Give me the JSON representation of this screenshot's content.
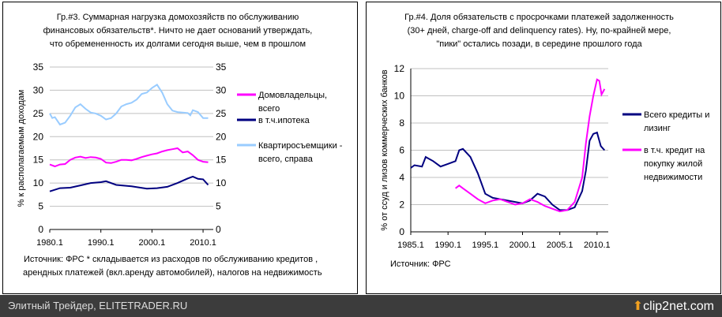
{
  "footer": {
    "left": "Элитный Трейдер, ELITETRADER.RU",
    "logo": "clip2net.com"
  },
  "chart_data": [
    {
      "type": "line",
      "title": "Гр.#3. Суммарная нагрузка домохозяйств по обслуживанию финансовых обязательств*. Ничто не дает оснований утверждать, что обремененность их долгами сегодня выше, чем в прошлом",
      "ylabel": "% к располагаемым доходам",
      "ylim": [
        0,
        35
      ],
      "yticks": [
        "0",
        "5",
        "10",
        "15",
        "20",
        "25",
        "30",
        "35"
      ],
      "xlim": [
        1980,
        2012
      ],
      "xticks": [
        {
          "v": 1980,
          "label": "1980.1"
        },
        {
          "v": 1990,
          "label": "1990.1"
        },
        {
          "v": 2000,
          "label": "2000.1"
        },
        {
          "v": 2010,
          "label": "2010.1"
        }
      ],
      "note": [
        "Источник: ФРС * складывается из расходов по обслуживанию кредитов ,",
        "арендных платежей (вкл.аренду автомобилей),  налогов на недвижимость"
      ],
      "series": [
        {
          "name": "Домовладельцы, всего",
          "legend": [
            "Домовладельцы,",
            "всего"
          ],
          "color": "#ff00ff",
          "x": [
            1980,
            1981,
            1982,
            1983,
            1984,
            1985,
            1986,
            1987,
            1988,
            1989,
            1990,
            1991,
            1992,
            1993,
            1994,
            1995,
            1996,
            1997,
            1998,
            1999,
            2000,
            2001,
            2002,
            2003,
            2004,
            2005,
            2006,
            2007,
            2008,
            2009,
            2010,
            2011
          ],
          "y": [
            14,
            13.6,
            14,
            14.1,
            15,
            15.5,
            15.7,
            15.4,
            15.6,
            15.5,
            15.2,
            14.4,
            14.3,
            14.6,
            15,
            15,
            14.9,
            15.2,
            15.6,
            15.9,
            16.2,
            16.4,
            16.8,
            17.1,
            17.3,
            17.5,
            16.6,
            16.8,
            16,
            15,
            14.6,
            14.5
          ]
        },
        {
          "name": "в т.ч.ипотека",
          "legend": [
            "в т.ч.ипотека"
          ],
          "color": "#000080",
          "x": [
            1980,
            1982,
            1984,
            1986,
            1988,
            1990,
            1991,
            1993,
            1996,
            1999,
            2001,
            2003,
            2005,
            2007,
            2008,
            2009,
            2010,
            2011
          ],
          "y": [
            8.2,
            8.9,
            9,
            9.5,
            10,
            10.2,
            10.4,
            9.6,
            9.3,
            8.8,
            8.9,
            9.2,
            10,
            11,
            11.4,
            10.9,
            10.8,
            9.6
          ]
        },
        {
          "name": "Квартиросъемщики - всего, справа",
          "legend": [
            "Квартиросъемщики -",
            "всего, справа"
          ],
          "color": "#99ccff",
          "x": [
            1980,
            1980.5,
            1981,
            1982,
            1983,
            1984,
            1985,
            1986,
            1987,
            1988,
            1989,
            1990,
            1991,
            1992,
            1993,
            1994,
            1995,
            1996,
            1997,
            1998,
            1999,
            2000,
            2001,
            2002,
            2003,
            2004,
            2005,
            2006,
            2007,
            2007.5,
            2008,
            2009,
            2010,
            2011
          ],
          "y": [
            25,
            24,
            24.2,
            22.6,
            23,
            24.5,
            26.3,
            27,
            26,
            25.2,
            25,
            24.5,
            23.7,
            24,
            25,
            26.5,
            27,
            27.3,
            28,
            29.2,
            29.5,
            30.5,
            31.2,
            29.5,
            27,
            25.6,
            25.3,
            25.2,
            25.1,
            24.6,
            25.7,
            25.3,
            24,
            24
          ]
        }
      ]
    },
    {
      "type": "line",
      "title": "Гр.#4. Доля обязательств с просрочками платежей задолженность (30+ дней, charge-off and delinquency rates). Ну, по-крайней мере, \"пики\" остались позади, в середине прошлого года",
      "ylabel": "% от ссуд и лизов коммерческих банков",
      "ylim": [
        0,
        12
      ],
      "yticks": [
        "0",
        "2",
        "4",
        "6",
        "8",
        "10",
        "12"
      ],
      "xlim": [
        1985,
        2011.5
      ],
      "xticks": [
        {
          "v": 1985,
          "label": "1985.1"
        },
        {
          "v": 1990,
          "label": "1990.1"
        },
        {
          "v": 1995,
          "label": "1995.1"
        },
        {
          "v": 2000,
          "label": "2000.1"
        },
        {
          "v": 2005,
          "label": "2005.1"
        },
        {
          "v": 2010,
          "label": "2010.1"
        }
      ],
      "note": [
        "Источник: ФРС"
      ],
      "series": [
        {
          "name": "Всего кредиты и лизинг",
          "legend": [
            "Всего кредиты и",
            "лизинг"
          ],
          "color": "#000080",
          "x": [
            1985,
            1985.5,
            1986.5,
            1987,
            1988,
            1989,
            1990,
            1991,
            1991.5,
            1992,
            1993,
            1994,
            1995,
            1996,
            1997,
            1998,
            1999,
            2000,
            2001,
            2002,
            2003,
            2004,
            2005,
            2006,
            2007,
            2008,
            2008.5,
            2009,
            2009.5,
            2010,
            2010.5,
            2011
          ],
          "y": [
            4.7,
            4.9,
            4.8,
            5.5,
            5.2,
            4.8,
            5,
            5.2,
            6,
            6.1,
            5.5,
            4.3,
            2.8,
            2.5,
            2.4,
            2.3,
            2.2,
            2.1,
            2.3,
            2.8,
            2.6,
            2,
            1.6,
            1.6,
            1.8,
            3,
            4.5,
            6.7,
            7.2,
            7.3,
            6.3,
            6
          ]
        },
        {
          "name": "в т.ч. кредит на покупку жилой недвижимости",
          "legend": [
            "в т.ч. кредит на",
            "покупку жилой",
            "недвижимости"
          ],
          "color": "#ff00ff",
          "x": [
            1991,
            1991.5,
            1992,
            1993,
            1994,
            1995,
            1996,
            1997,
            1998,
            1999,
            2000,
            2001,
            2002,
            2003,
            2004,
            2005,
            2006,
            2007,
            2008,
            2008.5,
            2009,
            2009.5,
            2010,
            2010.3,
            2010.6,
            2011
          ],
          "y": [
            3.2,
            3.4,
            3.2,
            2.8,
            2.4,
            2.1,
            2.3,
            2.4,
            2.2,
            2,
            2.1,
            2.4,
            2.2,
            1.9,
            1.7,
            1.5,
            1.6,
            2.2,
            4,
            6.5,
            8.5,
            10,
            11.2,
            11.1,
            10.1,
            10.5
          ]
        }
      ]
    }
  ]
}
